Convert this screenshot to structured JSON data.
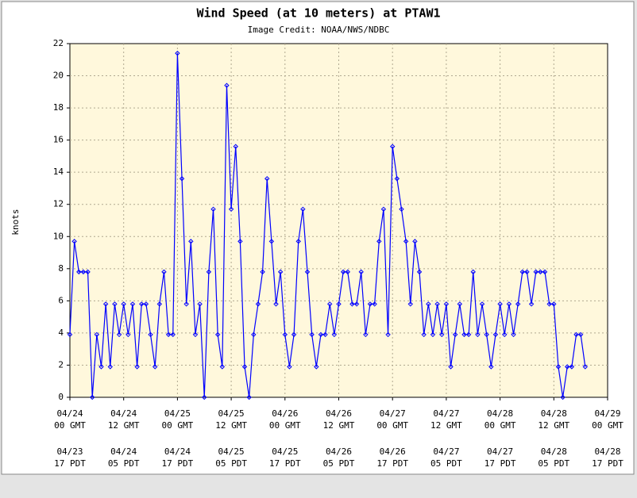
{
  "chart_data": {
    "type": "line",
    "title": "Wind Speed (at 10 meters) at PTAW1",
    "subtitle": "Image Credit: NOAA/NWS/NDBC",
    "y_label": "knots",
    "x": [
      0,
      1,
      2,
      3,
      4,
      5,
      6,
      7,
      8,
      9,
      10,
      11,
      12,
      13,
      14,
      15,
      16,
      17,
      18,
      19,
      20,
      21,
      22,
      23,
      24,
      25,
      26,
      27,
      28,
      29,
      30,
      31,
      32,
      33,
      34,
      35,
      36,
      37,
      38,
      39,
      40,
      41,
      42,
      43,
      44,
      45,
      46,
      47,
      48,
      49,
      50,
      51,
      52,
      53,
      54,
      55,
      56,
      57,
      58,
      59,
      60,
      61,
      62,
      63,
      64,
      65,
      66,
      67,
      68,
      69,
      70,
      71,
      72,
      73,
      74,
      75,
      76,
      77,
      78,
      79,
      80,
      81,
      82,
      83,
      84,
      85,
      86,
      87,
      88,
      89,
      90,
      91,
      92,
      93,
      94,
      95,
      96,
      97,
      98,
      99,
      100,
      101,
      102,
      103,
      104,
      105,
      106,
      107,
      108,
      109,
      110,
      111,
      112,
      113,
      114,
      115
    ],
    "series": [
      {
        "name": "knots",
        "color": "#0000ff",
        "values": [
          3.9,
          9.7,
          7.8,
          7.8,
          7.8,
          0,
          3.9,
          1.9,
          5.8,
          1.9,
          5.8,
          3.9,
          5.8,
          3.9,
          5.8,
          1.9,
          5.8,
          5.8,
          3.9,
          1.9,
          5.8,
          7.8,
          3.9,
          3.9,
          21.4,
          13.6,
          5.8,
          9.7,
          3.9,
          5.8,
          0,
          7.8,
          11.7,
          3.9,
          1.9,
          19.4,
          11.7,
          15.6,
          9.7,
          1.9,
          0,
          3.9,
          5.8,
          7.8,
          13.6,
          9.7,
          5.8,
          7.8,
          3.9,
          1.9,
          3.9,
          9.7,
          11.7,
          7.8,
          3.9,
          1.9,
          3.9,
          3.9,
          5.8,
          3.9,
          5.8,
          7.8,
          7.8,
          5.8,
          5.8,
          7.8,
          3.9,
          5.8,
          5.8,
          9.7,
          11.7,
          3.9,
          15.6,
          13.6,
          11.7,
          9.7,
          5.8,
          9.7,
          7.8,
          3.9,
          5.8,
          3.9,
          5.8,
          3.9,
          5.8,
          1.9,
          3.9,
          5.8,
          3.9,
          3.9,
          7.8,
          3.9,
          5.8,
          3.9,
          1.9,
          3.9,
          5.8,
          3.9,
          5.8,
          3.9,
          5.8,
          7.8,
          7.8,
          5.8,
          7.8,
          7.8,
          7.8,
          5.8,
          5.8,
          1.9,
          0,
          1.9,
          1.9,
          3.9,
          3.9,
          1.9
        ]
      }
    ],
    "xlim": [
      0,
      120
    ],
    "xticks": [
      {
        "value": 0,
        "date": "04/24",
        "time": "00 GMT",
        "local_date": "04/23",
        "local_time": "17 PDT"
      },
      {
        "value": 12,
        "date": "04/24",
        "time": "12 GMT",
        "local_date": "04/24",
        "local_time": "05 PDT"
      },
      {
        "value": 24,
        "date": "04/25",
        "time": "00 GMT",
        "local_date": "04/24",
        "local_time": "17 PDT"
      },
      {
        "value": 36,
        "date": "04/25",
        "time": "12 GMT",
        "local_date": "04/25",
        "local_time": "05 PDT"
      },
      {
        "value": 48,
        "date": "04/26",
        "time": "00 GMT",
        "local_date": "04/25",
        "local_time": "17 PDT"
      },
      {
        "value": 60,
        "date": "04/26",
        "time": "12 GMT",
        "local_date": "04/26",
        "local_time": "05 PDT"
      },
      {
        "value": 72,
        "date": "04/27",
        "time": "00 GMT",
        "local_date": "04/26",
        "local_time": "17 PDT"
      },
      {
        "value": 84,
        "date": "04/27",
        "time": "12 GMT",
        "local_date": "04/27",
        "local_time": "05 PDT"
      },
      {
        "value": 96,
        "date": "04/28",
        "time": "00 GMT",
        "local_date": "04/27",
        "local_time": "17 PDT"
      },
      {
        "value": 108,
        "date": "04/28",
        "time": "12 GMT",
        "local_date": "04/28",
        "local_time": "05 PDT"
      },
      {
        "value": 120,
        "date": "04/29",
        "time": "00 GMT",
        "local_date": "04/28",
        "local_time": "17 PDT"
      }
    ],
    "ylim": [
      0,
      22
    ],
    "yticks": [
      0,
      2,
      4,
      6,
      8,
      10,
      12,
      14,
      16,
      18,
      20,
      22
    ],
    "grid": true
  }
}
